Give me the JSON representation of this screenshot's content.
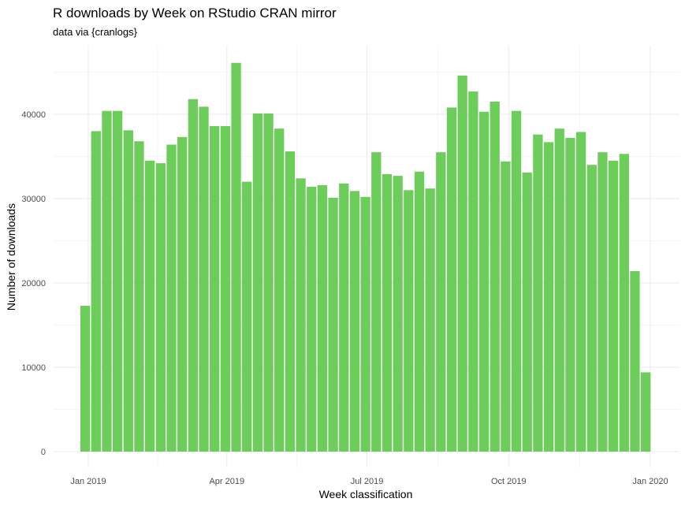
{
  "chart_data": {
    "type": "bar",
    "title": "R downloads by Week on RStudio CRAN mirror",
    "subtitle": "data via {cranlogs}",
    "xlabel": "Week classification",
    "ylabel": "Number of downloads",
    "ylim": [
      0,
      46000
    ],
    "yticks": [
      0,
      10000,
      20000,
      30000,
      40000
    ],
    "xlim": [
      "2018-12-23",
      "2020-01-11"
    ],
    "xticks": [
      {
        "date": "2019-01-01",
        "label": "Jan 2019"
      },
      {
        "date": "2019-04-01",
        "label": "Apr 2019"
      },
      {
        "date": "2019-07-01",
        "label": "Jul 2019"
      },
      {
        "date": "2019-10-01",
        "label": "Oct 2019"
      },
      {
        "date": "2020-01-01",
        "label": "Jan 2020"
      }
    ],
    "grid": true,
    "bar_color": "#6ccd5a",
    "series": [
      {
        "x": [
          "2018-12-30",
          "2019-01-06",
          "2019-01-13",
          "2019-01-20",
          "2019-01-27",
          "2019-02-03",
          "2019-02-10",
          "2019-02-17",
          "2019-02-24",
          "2019-03-03",
          "2019-03-10",
          "2019-03-17",
          "2019-03-24",
          "2019-03-31",
          "2019-04-07",
          "2019-04-14",
          "2019-04-21",
          "2019-04-28",
          "2019-05-05",
          "2019-05-12",
          "2019-05-19",
          "2019-05-26",
          "2019-06-02",
          "2019-06-09",
          "2019-06-16",
          "2019-06-23",
          "2019-06-30",
          "2019-07-07",
          "2019-07-14",
          "2019-07-21",
          "2019-07-28",
          "2019-08-04",
          "2019-08-11",
          "2019-08-18",
          "2019-08-25",
          "2019-09-01",
          "2019-09-08",
          "2019-09-15",
          "2019-09-22",
          "2019-09-29",
          "2019-10-06",
          "2019-10-13",
          "2019-10-20",
          "2019-10-27",
          "2019-11-03",
          "2019-11-10",
          "2019-11-17",
          "2019-11-24",
          "2019-12-01",
          "2019-12-08",
          "2019-12-15",
          "2019-12-22",
          "2019-12-29"
        ],
        "values": [
          17300,
          38000,
          40400,
          40400,
          38100,
          36800,
          34500,
          34200,
          36400,
          37300,
          41800,
          40900,
          38600,
          38600,
          46100,
          32000,
          40100,
          40100,
          38300,
          35600,
          32400,
          31400,
          31600,
          30100,
          31800,
          30900,
          30200,
          35500,
          32900,
          32700,
          31000,
          33200,
          31200,
          35500,
          40800,
          44600,
          42700,
          40300,
          41500,
          34400,
          40400,
          33100,
          37600,
          36700,
          38300,
          37200,
          37900,
          34000,
          35500,
          34500,
          35300,
          21400,
          9400
        ]
      }
    ]
  }
}
